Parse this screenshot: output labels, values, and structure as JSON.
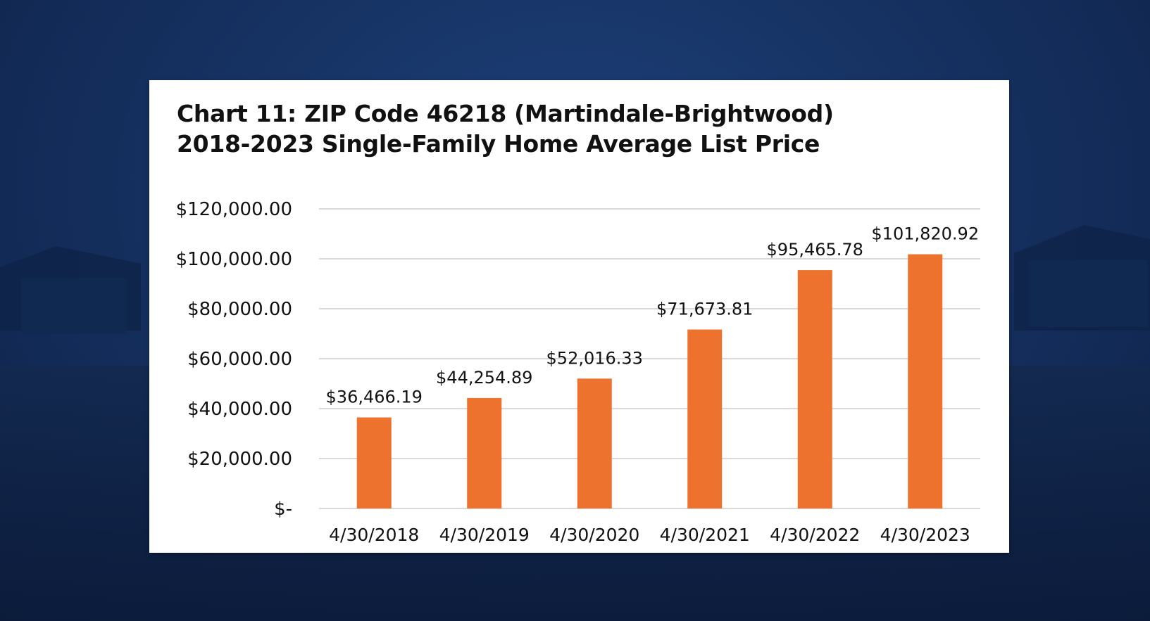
{
  "colors": {
    "bar": "#ec722e",
    "grid": "#d9d9d9",
    "card": "#ffffff",
    "background": "#163262"
  },
  "chart_data": {
    "type": "bar",
    "title": "Chart 11: ZIP Code 46218 (Martindale-Brightwood)",
    "subtitle": "2018-2023 Single-Family Home Average List Price",
    "categories": [
      "4/30/2018",
      "4/30/2019",
      "4/30/2020",
      "4/30/2021",
      "4/30/2022",
      "4/30/2023"
    ],
    "values": [
      36466.19,
      44254.89,
      52016.33,
      71673.81,
      95465.78,
      101820.92
    ],
    "data_labels": [
      "$36,466.19",
      "$44,254.89",
      "$52,016.33",
      "$71,673.81",
      "$95,465.78",
      "$101,820.92"
    ],
    "y_ticks": [
      0,
      20000,
      40000,
      60000,
      80000,
      100000,
      120000
    ],
    "y_tick_labels": [
      "$-",
      "$20,000.00",
      "$40,000.00",
      "$60,000.00",
      "$80,000.00",
      "$100,000.00",
      "$120,000.00"
    ],
    "ylim": [
      0,
      120000
    ],
    "xlabel": "",
    "ylabel": "",
    "grid": true,
    "legend": "none"
  }
}
